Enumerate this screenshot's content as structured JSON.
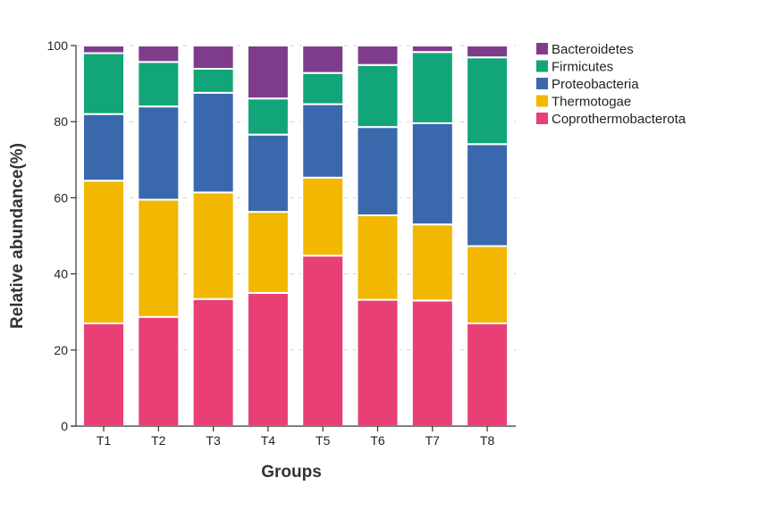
{
  "chart_data": {
    "type": "bar",
    "stacked": true,
    "xlabel": "Groups",
    "ylabel": "Relative abundance(%)",
    "ylim": [
      0,
      100
    ],
    "yticks": [
      0,
      20,
      40,
      60,
      80,
      100
    ],
    "grid": "horizontal dashed",
    "legend_position": "top-right",
    "categories": [
      "T1",
      "T2",
      "T3",
      "T4",
      "T5",
      "T6",
      "T7",
      "T8"
    ],
    "series": [
      {
        "name": "Coprothermobacterota",
        "color": "#E84075",
        "values": [
          27.0,
          28.7,
          33.4,
          35.0,
          44.8,
          33.2,
          33.0,
          27.0
        ]
      },
      {
        "name": "Thermotogae",
        "color": "#F2B701",
        "values": [
          37.5,
          30.8,
          28.0,
          21.3,
          20.5,
          22.2,
          20.0,
          20.3
        ]
      },
      {
        "name": "Proteobacteria",
        "color": "#3969AC",
        "values": [
          17.5,
          24.5,
          26.2,
          20.3,
          19.3,
          23.2,
          26.6,
          26.8
        ]
      },
      {
        "name": "Firmicutes",
        "color": "#11A579",
        "values": [
          16.0,
          11.7,
          6.3,
          9.5,
          8.2,
          16.3,
          18.7,
          22.8
        ]
      },
      {
        "name": "Bacteroidetes",
        "color": "#7F3C8D",
        "values": [
          2.0,
          4.3,
          6.1,
          13.9,
          7.2,
          5.1,
          1.7,
          3.1
        ]
      }
    ],
    "legend_order": [
      "Bacteroidetes",
      "Firmicutes",
      "Proteobacteria",
      "Thermotogae",
      "Coprothermobacterota"
    ]
  }
}
